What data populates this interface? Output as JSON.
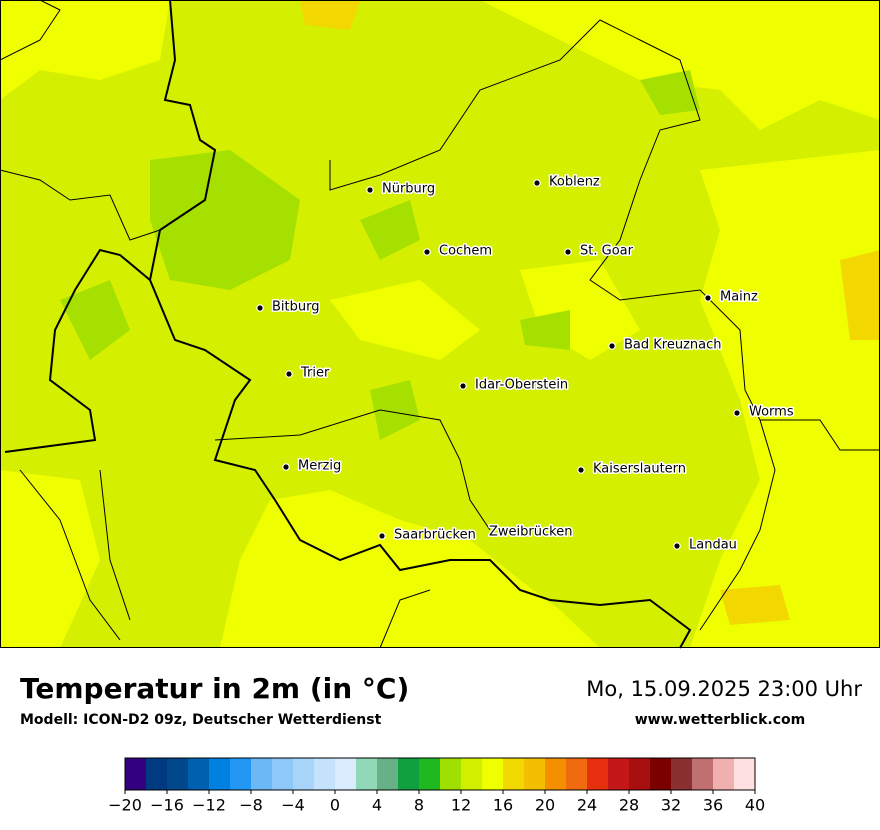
{
  "map": {
    "cities": [
      "Nürburg",
      "Koblenz",
      "Cochem",
      "St. Goar",
      "Mainz",
      "Bitburg",
      "Bad Kreuznach",
      "Trier",
      "Idar-Oberstein",
      "Worms",
      "Merzig",
      "Kaiserslautern",
      "Saarbrücken",
      "Zweibrücken",
      "Landau"
    ]
  },
  "footer": {
    "title": "Temperatur in 2m (in °C)",
    "subtitle": "Modell: ICON-D2 09z, Deutscher Wetterdienst",
    "datetime": "Mo, 15.09.2025 23:00 Uhr",
    "website": "www.wetterblick.com"
  },
  "colorbar": {
    "levels": [
      -20,
      -18,
      -16,
      -14,
      -12,
      -10,
      -8,
      -6,
      -4,
      -2,
      0,
      2,
      4,
      6,
      8,
      10,
      12,
      14,
      16,
      18,
      20,
      22,
      24,
      26,
      28,
      30,
      32,
      34,
      36,
      38,
      40
    ],
    "colors": [
      "#33007f",
      "#003a80",
      "#00488a",
      "#0060b0",
      "#0080e0",
      "#2196f3",
      "#6bb8f7",
      "#8dc8f8",
      "#a8d4fa",
      "#c4e2fc",
      "#d8ecfd",
      "#90d8b8",
      "#68b088",
      "#10a040",
      "#20b820",
      "#a0e000",
      "#d0f000",
      "#f0ff00",
      "#f0d800",
      "#f3bf00",
      "#f49000",
      "#f06a10",
      "#e83010",
      "#c41818",
      "#a81010",
      "#7a0000",
      "#8b3030",
      "#c07070",
      "#f0b0b0",
      "#ffe0e0"
    ],
    "ticks": [
      {
        "value": -20,
        "label": "−20"
      },
      {
        "value": -16,
        "label": "−16"
      },
      {
        "value": -12,
        "label": "−12"
      },
      {
        "value": -8,
        "label": "−8"
      },
      {
        "value": -4,
        "label": "−4"
      },
      0,
      4,
      8,
      12,
      16,
      20,
      24,
      28,
      32,
      36,
      40
    ]
  }
}
